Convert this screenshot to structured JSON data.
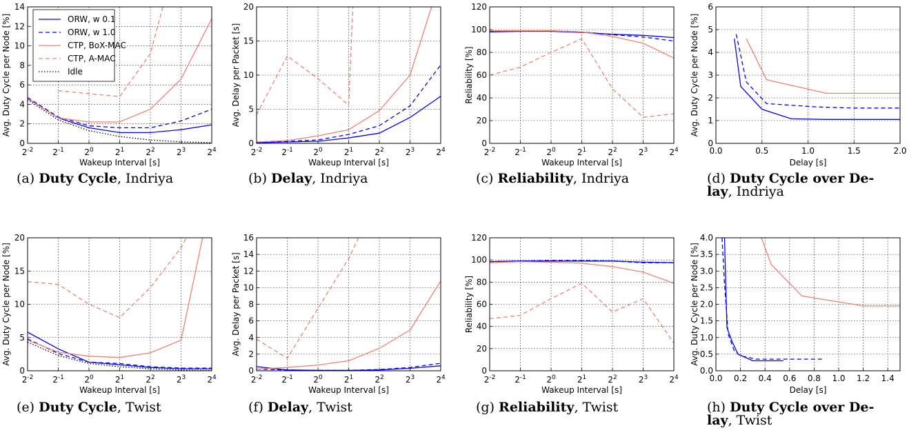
{
  "colors": {
    "orw": "#0000ff",
    "ctp": "#f08070",
    "idle": "#000000"
  },
  "legend": {
    "placement": "top-left of panel (a)",
    "entries": [
      "ORW, w 0.1",
      "ORW, w 1.0",
      "CTP, BoX-MAC",
      "CTP, A-MAC",
      "Idle"
    ]
  },
  "captions": [
    {
      "label": "(a)",
      "bold": "Duty Cycle",
      "rest": ", Indriya"
    },
    {
      "label": "(b)",
      "bold": "Delay",
      "rest": ", Indriya"
    },
    {
      "label": "(c)",
      "bold": "Reliability",
      "rest": ", Indriya"
    },
    {
      "label": "(d)",
      "bold": "Duty Cycle over De-",
      "bold2": "lay",
      "rest": ", Indriya"
    },
    {
      "label": "(e)",
      "bold": "Duty Cycle",
      "rest": ", Twist"
    },
    {
      "label": "(f)",
      "bold": "Delay",
      "rest": ", Twist"
    },
    {
      "label": "(g)",
      "bold": "Reliability",
      "rest": ", Twist"
    },
    {
      "label": "(h)",
      "bold": "Duty Cycle over De-",
      "bold2": "lay",
      "rest": ", Twist"
    }
  ],
  "chart_data": [
    {
      "id": "a",
      "type": "line",
      "xscale": "log2",
      "xlabel": "Wakeup Interval [s]",
      "ylabel": "Avg. Duty Cycle per Node [%]",
      "xlim": [
        0.25,
        16
      ],
      "ylim": [
        0,
        14
      ],
      "yticks": [
        "0",
        "2",
        "4",
        "6",
        "8",
        "10",
        "12",
        "14"
      ],
      "legend": true,
      "series": [
        {
          "name": "ORW, w 0.1",
          "style": "orw-solid",
          "x": [
            0.25,
            0.5,
            1,
            2,
            4,
            8,
            16
          ],
          "y": [
            4.6,
            2.6,
            1.6,
            1.1,
            1.1,
            1.4,
            1.9
          ]
        },
        {
          "name": "ORW, w 1.0",
          "style": "orw-dash",
          "x": [
            0.25,
            0.5,
            1,
            2,
            4,
            8,
            16
          ],
          "y": [
            4.7,
            2.7,
            1.8,
            1.6,
            1.6,
            2.3,
            3.5
          ]
        },
        {
          "name": "CTP, BoX-MAC",
          "style": "ctp-solid",
          "x": [
            0.25,
            0.5,
            1,
            2,
            4,
            8,
            16
          ],
          "y": [
            4.6,
            2.6,
            2.2,
            2.2,
            3.5,
            6.6,
            12.8
          ]
        },
        {
          "name": "CTP, A-MAC",
          "style": "ctp-dash",
          "x": [
            0.5,
            1,
            2,
            4,
            5.3
          ],
          "y": [
            5.4,
            5.1,
            4.8,
            9.2,
            14
          ]
        },
        {
          "name": "Idle",
          "style": "idle-dot",
          "x": [
            0.25,
            0.5,
            1,
            2,
            4,
            8,
            16
          ],
          "y": [
            4.5,
            2.4,
            1.3,
            0.7,
            0.35,
            0.15,
            0.08
          ]
        }
      ]
    },
    {
      "id": "b",
      "type": "line",
      "xscale": "log2",
      "xlabel": "Wakeup Interval [s]",
      "ylabel": "Avg. Delay per Packet [s]",
      "xlim": [
        0.25,
        16
      ],
      "ylim": [
        0,
        20
      ],
      "yticks": [
        "0",
        "5",
        "10",
        "15",
        "20"
      ],
      "series": [
        {
          "name": "ORW, w 0.1",
          "style": "orw-solid",
          "x": [
            0.25,
            0.5,
            1,
            2,
            4,
            8,
            16
          ],
          "y": [
            0.1,
            0.2,
            0.3,
            0.8,
            1.5,
            3.8,
            6.9
          ]
        },
        {
          "name": "ORW, w 1.0",
          "style": "orw-dash",
          "x": [
            0.25,
            0.5,
            1,
            2,
            4,
            8,
            16
          ],
          "y": [
            0.15,
            0.3,
            0.5,
            1.3,
            2.6,
            5.5,
            11.5
          ]
        },
        {
          "name": "CTP, BoX-MAC",
          "style": "ctp-solid",
          "x": [
            0.25,
            0.5,
            1,
            2,
            4,
            8,
            13
          ],
          "y": [
            0.2,
            0.4,
            1.1,
            2.0,
            4.8,
            10,
            20
          ]
        },
        {
          "name": "CTP, A-MAC",
          "style": "ctp-dash",
          "x": [
            0.25,
            0.5,
            1,
            2,
            2.2
          ],
          "y": [
            4.2,
            12.8,
            9.5,
            5.6,
            20
          ]
        }
      ]
    },
    {
      "id": "c",
      "type": "line",
      "xscale": "log2",
      "xlabel": "Wakeup Interval [s]",
      "ylabel": "Reliability [%]",
      "xlim": [
        0.25,
        16
      ],
      "ylim": [
        0,
        120
      ],
      "yticks": [
        "0",
        "20",
        "40",
        "60",
        "80",
        "100",
        "120"
      ],
      "series": [
        {
          "name": "ORW, w 0.1",
          "style": "orw-solid",
          "x": [
            0.25,
            0.5,
            1,
            2,
            4,
            8,
            16
          ],
          "y": [
            98,
            98.5,
            98.5,
            97.5,
            96,
            95,
            93
          ]
        },
        {
          "name": "ORW, w 1.0",
          "style": "orw-dash",
          "x": [
            0.25,
            0.5,
            1,
            2,
            4,
            8,
            16
          ],
          "y": [
            98.5,
            98.5,
            99,
            98,
            95.5,
            93.5,
            90
          ]
        },
        {
          "name": "CTP, BoX-MAC",
          "style": "ctp-solid",
          "x": [
            0.25,
            0.5,
            1,
            2,
            4,
            8,
            16
          ],
          "y": [
            99,
            99,
            99,
            98,
            94,
            88,
            75
          ]
        },
        {
          "name": "CTP, A-MAC",
          "style": "ctp-dash",
          "x": [
            0.25,
            0.5,
            1,
            2,
            4,
            8,
            16
          ],
          "y": [
            60,
            67,
            80,
            92,
            48,
            23,
            26
          ]
        }
      ]
    },
    {
      "id": "d",
      "type": "line",
      "xscale": "linear",
      "xlabel": "Delay [s]",
      "ylabel": "Avg. Duty Cycle per Node [%]",
      "xlim": [
        0,
        2
      ],
      "ylim": [
        0,
        6
      ],
      "xticks": [
        "0.0",
        "0.5",
        "1.0",
        "1.5",
        "2.0"
      ],
      "yticks": [
        "0",
        "1",
        "2",
        "3",
        "4",
        "5",
        "6"
      ],
      "series": [
        {
          "name": "ORW, w 0.1",
          "style": "orw-solid",
          "x": [
            0.2,
            0.27,
            0.5,
            0.82,
            1.2,
            2.0
          ],
          "y": [
            4.6,
            2.5,
            1.5,
            1.08,
            1.05,
            1.05
          ]
        },
        {
          "name": "ORW, w 1.0",
          "style": "orw-dash",
          "x": [
            0.22,
            0.33,
            0.55,
            1.1,
            1.5,
            2.0
          ],
          "y": [
            4.8,
            2.7,
            1.75,
            1.6,
            1.55,
            1.55
          ]
        },
        {
          "name": "CTP, BoX-MAC",
          "style": "ctp-solid",
          "x": [
            0.33,
            0.55,
            1.2,
            2.0
          ],
          "y": [
            4.6,
            2.8,
            2.2,
            2.2
          ]
        }
      ]
    },
    {
      "id": "e",
      "type": "line",
      "xscale": "log2",
      "xlabel": "Wakeup Interval [s]",
      "ylabel": "Avg. Duty Cycle per Node [%]",
      "xlim": [
        0.25,
        16
      ],
      "ylim": [
        0,
        20
      ],
      "yticks": [
        "0",
        "5",
        "10",
        "15",
        "20"
      ],
      "series": [
        {
          "name": "ORW, w 0.1",
          "style": "orw-solid",
          "x": [
            0.25,
            0.5,
            1,
            2,
            4,
            8,
            16
          ],
          "y": [
            5.8,
            3.3,
            1.3,
            0.9,
            0.5,
            0.3,
            0.3
          ]
        },
        {
          "name": "ORW, w 1.0",
          "style": "orw-dash",
          "x": [
            0.25,
            0.5,
            1,
            2,
            4,
            8,
            16
          ],
          "y": [
            4.8,
            2.6,
            1.3,
            1.1,
            0.6,
            0.4,
            0.4
          ]
        },
        {
          "name": "CTP, BoX-MAC",
          "style": "ctp-solid",
          "x": [
            0.25,
            0.5,
            1,
            2,
            4,
            8,
            13
          ],
          "y": [
            4.6,
            2.8,
            2.2,
            2.0,
            2.7,
            4.6,
            20
          ]
        },
        {
          "name": "CTP, A-MAC",
          "style": "ctp-dash",
          "x": [
            0.25,
            0.5,
            1,
            2,
            4,
            8,
            9
          ],
          "y": [
            13.4,
            13.0,
            10,
            8.0,
            12.5,
            18.5,
            20
          ]
        },
        {
          "name": "Idle",
          "style": "idle-dot",
          "x": [
            0.25,
            0.5,
            1,
            2,
            4,
            8,
            16
          ],
          "y": [
            4.3,
            2.3,
            1.1,
            0.6,
            0.3,
            0.1,
            0.05
          ]
        }
      ]
    },
    {
      "id": "f",
      "type": "line",
      "xscale": "log2",
      "xlabel": "Wakeup Interval [s]",
      "ylabel": "Avg. Delay per Packet [s]",
      "xlim": [
        0.25,
        16
      ],
      "ylim": [
        0,
        16
      ],
      "yticks": [
        "0",
        "2",
        "4",
        "6",
        "8",
        "10",
        "12",
        "14",
        "16"
      ],
      "series": [
        {
          "name": "ORW, w 0.1",
          "style": "orw-solid",
          "x": [
            0.25,
            0.5,
            1,
            2,
            4,
            8,
            16
          ],
          "y": [
            0.5,
            0.1,
            0.05,
            0.05,
            0.1,
            0.3,
            0.6
          ]
        },
        {
          "name": "ORW, w 1.0",
          "style": "orw-dash",
          "x": [
            0.25,
            0.5,
            1,
            2,
            4,
            8,
            16
          ],
          "y": [
            0.2,
            0.1,
            0.05,
            0.05,
            0.15,
            0.4,
            0.9
          ]
        },
        {
          "name": "CTP, BoX-MAC",
          "style": "ctp-solid",
          "x": [
            0.25,
            0.5,
            1,
            2,
            4,
            8,
            16
          ],
          "y": [
            0.2,
            0.4,
            0.7,
            1.2,
            2.7,
            4.9,
            10.8
          ]
        },
        {
          "name": "CTP, A-MAC",
          "style": "ctp-dash",
          "x": [
            0.25,
            0.5,
            1,
            2,
            2.5
          ],
          "y": [
            3.8,
            1.5,
            7.5,
            13.5,
            16
          ]
        }
      ]
    },
    {
      "id": "g",
      "type": "line",
      "xscale": "log2",
      "xlabel": "Wakeup Interval [s]",
      "ylabel": "Reliability [%]",
      "xlim": [
        0.25,
        16
      ],
      "ylim": [
        0,
        120
      ],
      "yticks": [
        "0",
        "20",
        "40",
        "60",
        "80",
        "100",
        "120"
      ],
      "series": [
        {
          "name": "ORW, w 0.1",
          "style": "orw-solid",
          "x": [
            0.25,
            0.5,
            1,
            2,
            4,
            8,
            16
          ],
          "y": [
            98.5,
            99,
            99,
            99,
            99,
            98,
            97.5
          ]
        },
        {
          "name": "ORW, w 1.0",
          "style": "orw-dash",
          "x": [
            0.25,
            0.5,
            1,
            2,
            4,
            8,
            16
          ],
          "y": [
            98.5,
            99,
            99.5,
            99.5,
            99,
            97.5,
            97.5
          ]
        },
        {
          "name": "CTP, BoX-MAC",
          "style": "ctp-solid",
          "x": [
            0.25,
            0.5,
            1,
            2,
            4,
            8,
            16
          ],
          "y": [
            97.5,
            98.5,
            98,
            97,
            94,
            89,
            79
          ]
        },
        {
          "name": "CTP, A-MAC",
          "style": "ctp-dash",
          "x": [
            0.25,
            0.5,
            1,
            2,
            4,
            8,
            16
          ],
          "y": [
            47,
            50,
            65,
            79,
            53,
            65,
            25
          ]
        }
      ]
    },
    {
      "id": "h",
      "type": "line",
      "xscale": "linear",
      "xlabel": "Delay [s]",
      "ylabel": "Avg. Duty Cycle per Node [%]",
      "xlim": [
        0,
        1.5
      ],
      "ylim": [
        0,
        4
      ],
      "xticks": [
        "0.0",
        "0.2",
        "0.4",
        "0.6",
        "0.8",
        "1.0",
        "1.2",
        "1.4"
      ],
      "yticks": [
        "0.0",
        "0.5",
        "1.0",
        "1.5",
        "2.0",
        "2.5",
        "3.0",
        "3.5",
        "4.0"
      ],
      "series": [
        {
          "name": "ORW, w 0.1",
          "style": "orw-solid",
          "x": [
            0.07,
            0.09,
            0.13,
            0.18,
            0.3,
            0.55
          ],
          "y": [
            4,
            1.3,
            0.9,
            0.5,
            0.3,
            0.3
          ]
        },
        {
          "name": "ORW, w 1.0",
          "style": "orw-dash",
          "x": [
            0.05,
            0.07,
            0.1,
            0.15,
            0.2,
            0.33,
            0.6,
            0.88
          ],
          "y": [
            4,
            2.6,
            1.1,
            0.6,
            0.45,
            0.35,
            0.35,
            0.35
          ]
        },
        {
          "name": "CTP, BoX-MAC",
          "style": "ctp-solid",
          "x": [
            0.37,
            0.45,
            0.7,
            1.2,
            1.5
          ],
          "y": [
            4,
            3.2,
            2.25,
            1.95,
            1.95
          ]
        }
      ]
    }
  ]
}
